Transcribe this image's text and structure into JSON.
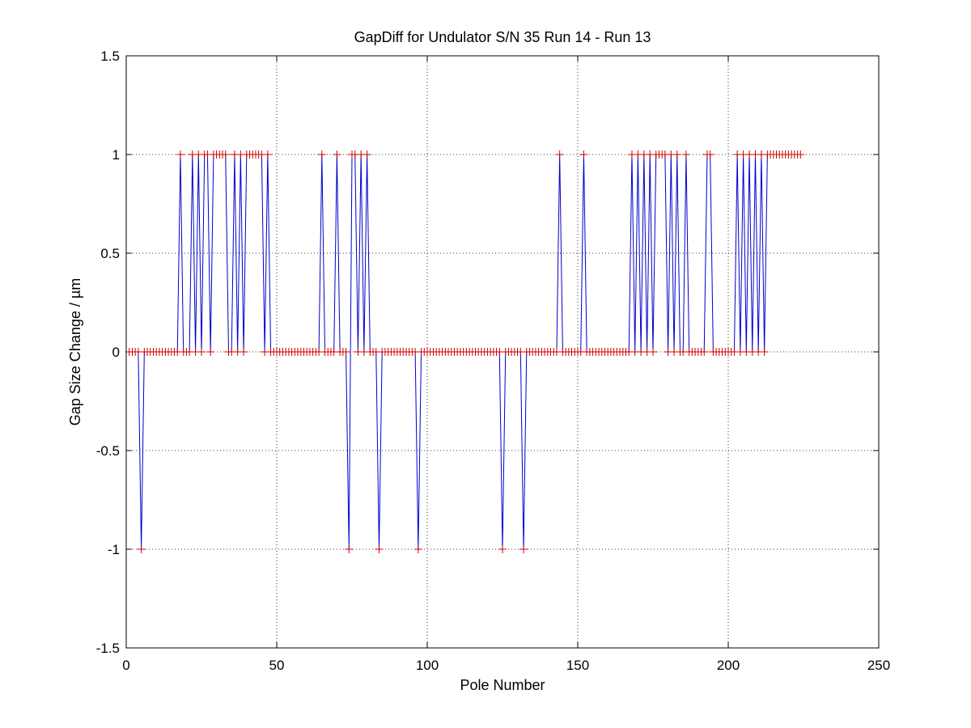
{
  "chart_data": {
    "type": "line",
    "title": "GapDiff  for Undulator S/N 35 Run 14 - Run 13",
    "xlabel": "Pole Number",
    "ylabel": "Gap Size Change / µm",
    "xlim": [
      0,
      250
    ],
    "ylim": [
      -1.5,
      1.5
    ],
    "xticks": [
      0,
      50,
      100,
      150,
      200,
      250
    ],
    "yticks": [
      1.5,
      1,
      0.5,
      0,
      -0.5,
      -1,
      -1.5
    ],
    "xtick_labels": [
      "0",
      "50",
      "100",
      "150",
      "200",
      "250"
    ],
    "ytick_labels": [
      "1.5",
      "1",
      "0.5",
      "0",
      "-0.5",
      "-1",
      "-1.5"
    ],
    "grid": true,
    "marker": "+",
    "colors": {
      "line": "#0000cc",
      "marker": "#cc0000"
    },
    "series": [
      {
        "x_start": 1,
        "x_step": 1,
        "values": [
          0,
          0,
          0,
          0,
          -1,
          0,
          0,
          0,
          0,
          0,
          0,
          0,
          0,
          0,
          0,
          0,
          0,
          1,
          0,
          0,
          0,
          1,
          0,
          1,
          0,
          1,
          1,
          0,
          1,
          1,
          1,
          1,
          1,
          0,
          0,
          1,
          0,
          1,
          0,
          1,
          1,
          1,
          1,
          1,
          1,
          0,
          1,
          0,
          0,
          0,
          0,
          0,
          0,
          0,
          0,
          0,
          0,
          0,
          0,
          0,
          0,
          0,
          0,
          0,
          1,
          0,
          0,
          0,
          0,
          1,
          0,
          0,
          0,
          -1,
          1,
          1,
          0,
          1,
          0,
          1,
          0,
          0,
          0,
          -1,
          0,
          0,
          0,
          0,
          0,
          0,
          0,
          0,
          0,
          0,
          0,
          0,
          -1,
          0,
          0,
          0,
          0,
          0,
          0,
          0,
          0,
          0,
          0,
          0,
          0,
          0,
          0,
          0,
          0,
          0,
          0,
          0,
          0,
          0,
          0,
          0,
          0,
          0,
          0,
          0,
          -1,
          0,
          0,
          0,
          0,
          0,
          0,
          -1,
          0,
          0,
          0,
          0,
          0,
          0,
          0,
          0,
          0,
          0,
          0,
          1,
          0,
          0,
          0,
          0,
          0,
          0,
          0,
          1,
          0,
          0,
          0,
          0,
          0,
          0,
          0,
          0,
          0,
          0,
          0,
          0,
          0,
          0,
          0,
          1,
          0,
          1,
          0,
          1,
          0,
          1,
          0,
          1,
          1,
          1,
          1,
          0,
          1,
          0,
          1,
          0,
          0,
          1,
          0,
          0,
          0,
          0,
          0,
          0,
          1,
          1,
          0,
          0,
          0,
          0,
          0,
          0,
          0,
          0,
          1,
          0,
          1,
          0,
          1,
          0,
          1,
          0,
          1,
          0,
          1,
          1,
          1,
          1,
          1,
          1,
          1,
          1,
          1,
          1,
          1,
          1
        ]
      }
    ]
  }
}
